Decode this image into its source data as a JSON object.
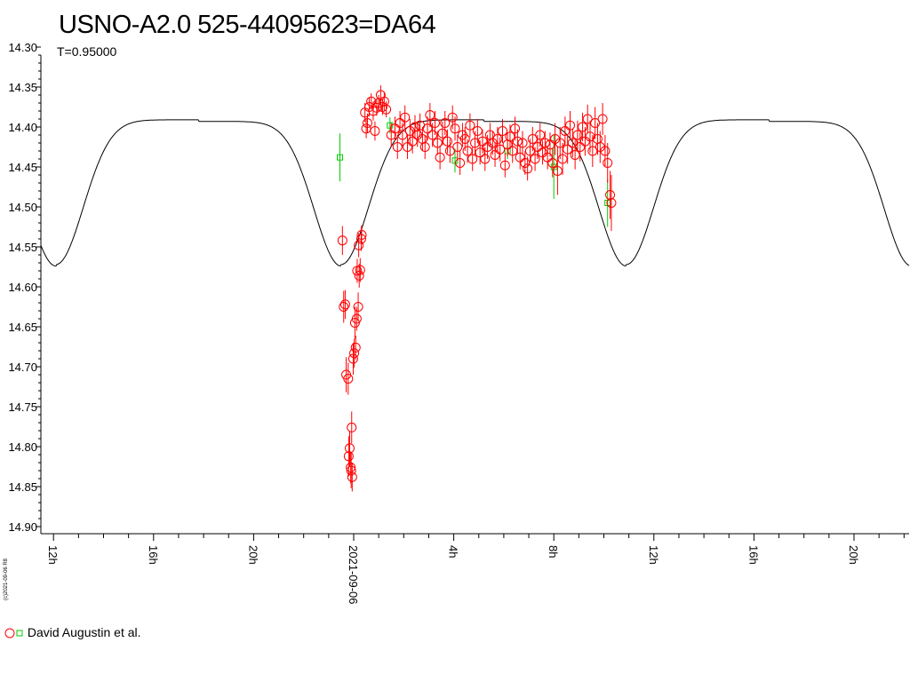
{
  "chart_data": {
    "type": "scatter",
    "title": "USNO-A2.0 525-44095623=DA64",
    "subtitle": "T=0.95000",
    "credit": "(c)2021-09-06 R8",
    "y_axis": {
      "reversed": true,
      "ylim": [
        14.3,
        14.9
      ],
      "tick_labels": [
        "14.30",
        "14.35",
        "14.40",
        "14.45",
        "14.50",
        "14.55",
        "14.60",
        "14.65",
        "14.70",
        "14.75",
        "14.80",
        "14.85",
        "14.90"
      ]
    },
    "x_axis": {
      "unit": "hours relative to 2021-09-06 00:00",
      "xlim": [
        -11.2,
        22.3
      ],
      "ticks": [
        {
          "h": -12,
          "label": "12h"
        },
        {
          "h": -8,
          "label": "16h"
        },
        {
          "h": -4,
          "label": "20h"
        },
        {
          "h": 0,
          "label": "2021-09-06"
        },
        {
          "h": 4,
          "label": "4h"
        },
        {
          "h": 8,
          "label": "8h"
        },
        {
          "h": 12,
          "label": "12h"
        },
        {
          "h": 16,
          "label": "16h"
        },
        {
          "h": 20,
          "label": "20h"
        }
      ]
    },
    "model_curve": {
      "name": "model light curve",
      "color": "#000000",
      "minima_hours": [
        -11.9,
        -0.5,
        10.9
      ],
      "minimum_mag": 14.572,
      "maximum_mag": 14.391
    },
    "series": [
      {
        "name": "David Augustin et al.",
        "marker": "circle",
        "color": "#ff0000",
        "points": [
          [
            -0.45,
            14.542,
            0.018
          ],
          [
            -0.4,
            14.625,
            0.02
          ],
          [
            -0.34,
            14.622,
            0.018
          ],
          [
            -0.3,
            14.71,
            0.022
          ],
          [
            -0.22,
            14.715,
            0.02
          ],
          [
            -0.2,
            14.812,
            0.025
          ],
          [
            -0.16,
            14.802,
            0.022
          ],
          [
            -0.12,
            14.826,
            0.02
          ],
          [
            -0.1,
            14.83,
            0.022
          ],
          [
            -0.08,
            14.776,
            0.02
          ],
          [
            -0.06,
            14.838,
            0.018
          ],
          [
            -0.02,
            14.69,
            0.02
          ],
          [
            0.02,
            14.683,
            0.018
          ],
          [
            0.05,
            14.645,
            0.02
          ],
          [
            0.08,
            14.676,
            0.015
          ],
          [
            0.12,
            14.64,
            0.015
          ],
          [
            0.14,
            14.58,
            0.015
          ],
          [
            0.18,
            14.625,
            0.018
          ],
          [
            0.2,
            14.548,
            0.015
          ],
          [
            0.22,
            14.586,
            0.015
          ],
          [
            0.26,
            14.579,
            0.015
          ],
          [
            0.3,
            14.54,
            0.015
          ],
          [
            0.32,
            14.535,
            0.012
          ],
          [
            0.45,
            14.382,
            0.012
          ],
          [
            0.5,
            14.402,
            0.012
          ],
          [
            0.55,
            14.395,
            0.012
          ],
          [
            0.62,
            14.375,
            0.012
          ],
          [
            0.7,
            14.368,
            0.01
          ],
          [
            0.78,
            14.38,
            0.012
          ],
          [
            0.85,
            14.405,
            0.012
          ],
          [
            0.92,
            14.376,
            0.01
          ],
          [
            1.0,
            14.37,
            0.01
          ],
          [
            1.08,
            14.36,
            0.012
          ],
          [
            1.15,
            14.375,
            0.01
          ],
          [
            1.22,
            14.368,
            0.012
          ],
          [
            1.3,
            14.378,
            0.01
          ],
          [
            1.5,
            14.41,
            0.015
          ],
          [
            1.65,
            14.402,
            0.015
          ],
          [
            1.75,
            14.425,
            0.015
          ],
          [
            1.85,
            14.395,
            0.015
          ],
          [
            1.95,
            14.41,
            0.015
          ],
          [
            2.05,
            14.388,
            0.015
          ],
          [
            2.15,
            14.425,
            0.015
          ],
          [
            2.25,
            14.405,
            0.015
          ],
          [
            2.35,
            14.418,
            0.015
          ],
          [
            2.45,
            14.4,
            0.015
          ],
          [
            2.55,
            14.41,
            0.015
          ],
          [
            2.65,
            14.398,
            0.015
          ],
          [
            2.75,
            14.415,
            0.015
          ],
          [
            2.85,
            14.425,
            0.015
          ],
          [
            2.95,
            14.402,
            0.015
          ],
          [
            3.05,
            14.385,
            0.015
          ],
          [
            3.15,
            14.41,
            0.015
          ],
          [
            3.25,
            14.395,
            0.015
          ],
          [
            3.35,
            14.42,
            0.015
          ],
          [
            3.45,
            14.438,
            0.015
          ],
          [
            3.55,
            14.408,
            0.015
          ],
          [
            3.65,
            14.395,
            0.015
          ],
          [
            3.75,
            14.418,
            0.015
          ],
          [
            3.85,
            14.43,
            0.015
          ],
          [
            3.95,
            14.388,
            0.015
          ],
          [
            4.05,
            14.402,
            0.015
          ],
          [
            4.15,
            14.425,
            0.015
          ],
          [
            4.25,
            14.445,
            0.015
          ],
          [
            4.35,
            14.41,
            0.015
          ],
          [
            4.45,
            14.415,
            0.015
          ],
          [
            4.55,
            14.43,
            0.015
          ],
          [
            4.65,
            14.398,
            0.015
          ],
          [
            4.75,
            14.44,
            0.015
          ],
          [
            4.85,
            14.42,
            0.015
          ],
          [
            4.95,
            14.405,
            0.015
          ],
          [
            5.05,
            14.432,
            0.015
          ],
          [
            5.15,
            14.418,
            0.015
          ],
          [
            5.25,
            14.44,
            0.015
          ],
          [
            5.35,
            14.425,
            0.015
          ],
          [
            5.45,
            14.41,
            0.015
          ],
          [
            5.55,
            14.42,
            0.015
          ],
          [
            5.65,
            14.435,
            0.015
          ],
          [
            5.75,
            14.415,
            0.015
          ],
          [
            5.85,
            14.428,
            0.015
          ],
          [
            5.95,
            14.405,
            0.015
          ],
          [
            6.05,
            14.448,
            0.015
          ],
          [
            6.15,
            14.422,
            0.015
          ],
          [
            6.25,
            14.412,
            0.015
          ],
          [
            6.35,
            14.43,
            0.015
          ],
          [
            6.45,
            14.402,
            0.015
          ],
          [
            6.55,
            14.418,
            0.015
          ],
          [
            6.65,
            14.438,
            0.015
          ],
          [
            6.75,
            14.42,
            0.015
          ],
          [
            6.85,
            14.445,
            0.015
          ],
          [
            6.95,
            14.452,
            0.015
          ],
          [
            7.05,
            14.43,
            0.015
          ],
          [
            7.15,
            14.415,
            0.015
          ],
          [
            7.25,
            14.44,
            0.015
          ],
          [
            7.35,
            14.425,
            0.015
          ],
          [
            7.45,
            14.41,
            0.015
          ],
          [
            7.55,
            14.432,
            0.015
          ],
          [
            7.65,
            14.42,
            0.015
          ],
          [
            7.75,
            14.438,
            0.015
          ],
          [
            7.85,
            14.422,
            0.015
          ],
          [
            7.95,
            14.445,
            0.018
          ],
          [
            8.05,
            14.415,
            0.02
          ],
          [
            8.15,
            14.455,
            0.03
          ],
          [
            8.25,
            14.42,
            0.02
          ],
          [
            8.35,
            14.44,
            0.02
          ],
          [
            8.45,
            14.405,
            0.018
          ],
          [
            8.55,
            14.428,
            0.018
          ],
          [
            8.65,
            14.398,
            0.018
          ],
          [
            8.75,
            14.42,
            0.018
          ],
          [
            8.85,
            14.435,
            0.018
          ],
          [
            8.95,
            14.41,
            0.018
          ],
          [
            9.05,
            14.425,
            0.018
          ],
          [
            9.15,
            14.4,
            0.018
          ],
          [
            9.25,
            14.418,
            0.018
          ],
          [
            9.35,
            14.39,
            0.018
          ],
          [
            9.45,
            14.412,
            0.02
          ],
          [
            9.55,
            14.43,
            0.02
          ],
          [
            9.65,
            14.395,
            0.02
          ],
          [
            9.75,
            14.415,
            0.02
          ],
          [
            9.85,
            14.425,
            0.02
          ],
          [
            9.95,
            14.39,
            0.02
          ],
          [
            10.05,
            14.43,
            0.02
          ],
          [
            10.15,
            14.445,
            0.025
          ],
          [
            10.25,
            14.485,
            0.03
          ],
          [
            10.3,
            14.495,
            0.035
          ]
        ]
      },
      {
        "name": "David Augustin et al.",
        "marker": "square",
        "color": "#00cc00",
        "points": [
          [
            -0.55,
            14.438,
            0.03
          ],
          [
            1.45,
            14.398,
            0.01
          ],
          [
            4.05,
            14.442,
            0.015
          ],
          [
            6.15,
            14.43,
            0.01
          ],
          [
            8.0,
            14.45,
            0.04
          ],
          [
            10.15,
            14.495,
            0.03
          ]
        ]
      }
    ],
    "legend": {
      "position": "bottom-left",
      "label": "David Augustin et al."
    },
    "grid": false
  }
}
